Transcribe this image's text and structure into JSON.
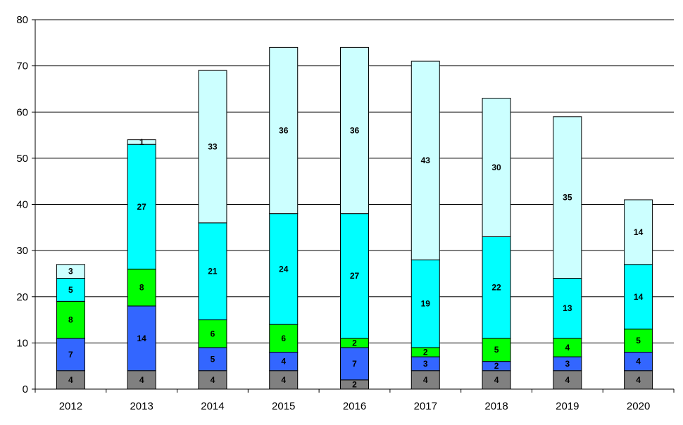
{
  "chart_data": {
    "type": "bar",
    "stacked": true,
    "title": "",
    "xlabel": "",
    "ylabel": "",
    "ylim": [
      0,
      80
    ],
    "yticks": [
      0,
      10,
      20,
      30,
      40,
      50,
      60,
      70,
      80
    ],
    "grid": true,
    "legend": "none",
    "categories": [
      "2012",
      "2013",
      "2014",
      "2015",
      "2016",
      "2017",
      "2018",
      "2019",
      "2020"
    ],
    "series": [
      {
        "color": "#808080",
        "values": [
          4,
          4,
          4,
          4,
          2,
          4,
          4,
          4,
          4
        ]
      },
      {
        "color": "#3366ff",
        "values": [
          7,
          14,
          5,
          4,
          7,
          3,
          2,
          3,
          4
        ]
      },
      {
        "color": "#00ff00",
        "values": [
          8,
          8,
          6,
          6,
          2,
          2,
          5,
          4,
          5
        ]
      },
      {
        "color": "#00ffff",
        "values": [
          5,
          27,
          21,
          24,
          27,
          19,
          22,
          13,
          14
        ]
      },
      {
        "color": "#ccffff",
        "values": [
          3,
          1,
          33,
          36,
          36,
          43,
          30,
          35,
          14
        ]
      }
    ]
  }
}
